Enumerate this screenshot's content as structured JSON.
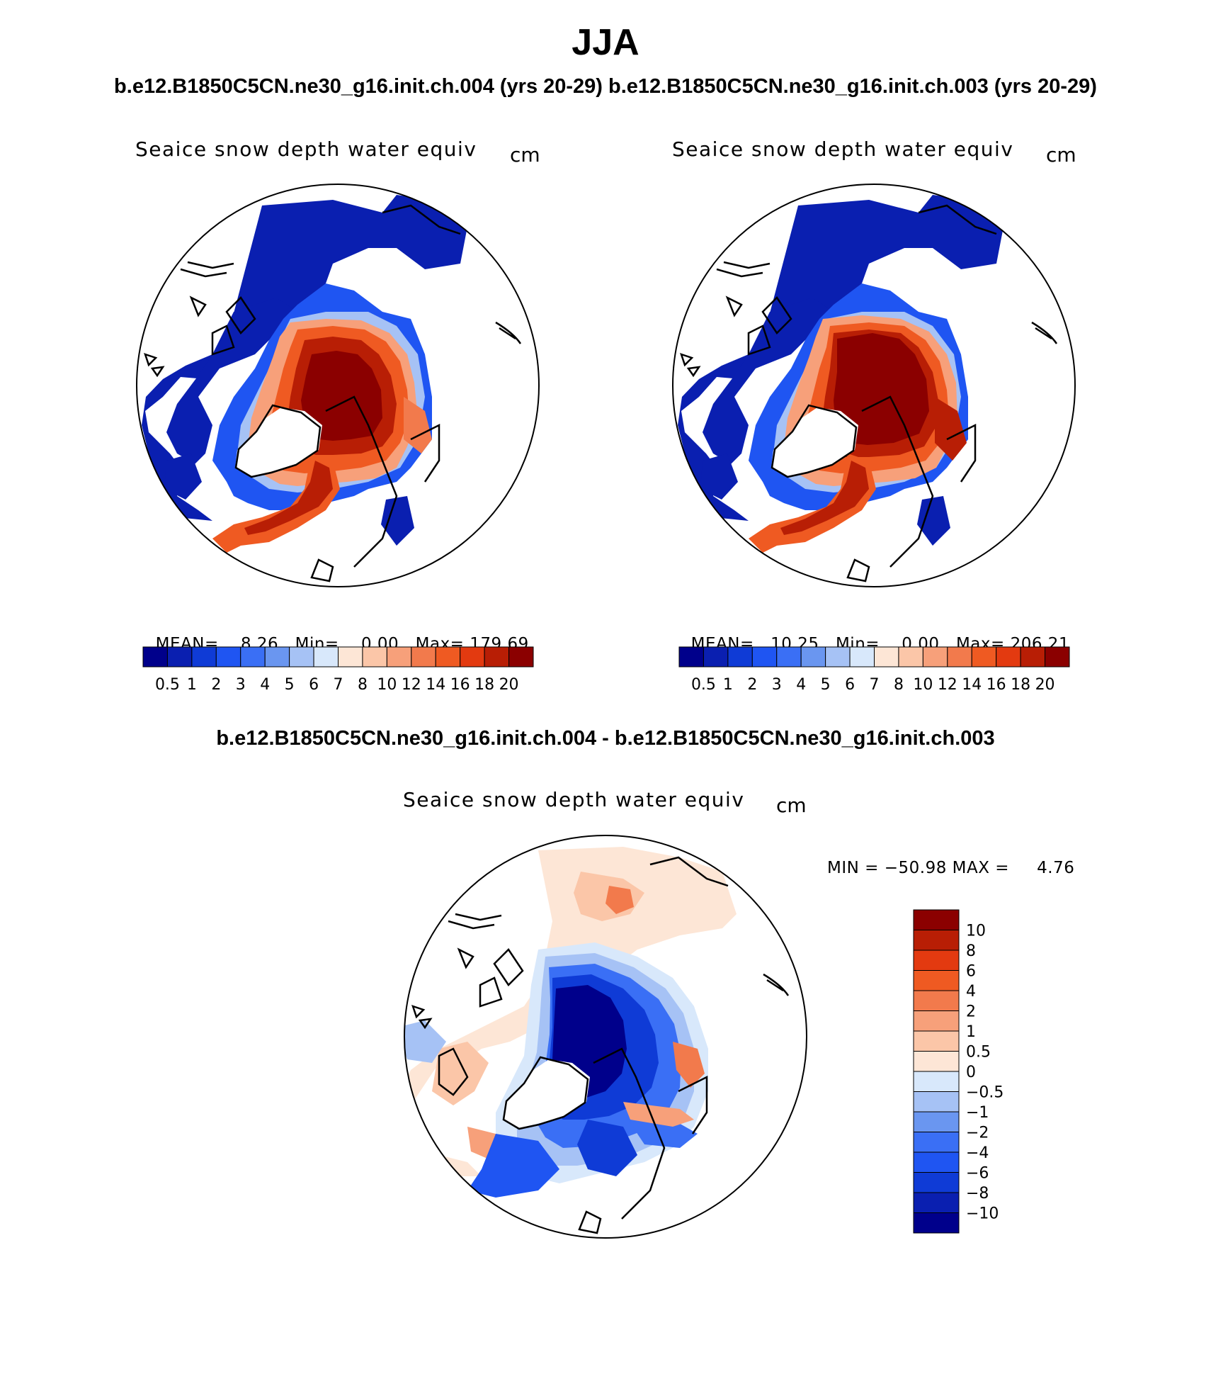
{
  "title": "JJA",
  "case_titles": "b.e12.B1850C5CN.ne30_g16.init.ch.004 (yrs 20-29)  b.e12.B1850C5CN.ne30_g16.init.ch.003 (yrs 20-29)",
  "diff_title": "b.e12.B1850C5CN.ne30_g16.init.ch.004 - b.e12.B1850C5CN.ne30_g16.init.ch.003",
  "chart_data": [
    {
      "type": "heatmap",
      "projection": "north polar stereographic",
      "title": "Seaice snow depth water equiv",
      "units": "cm",
      "stats": {
        "mean_label": "MEAN=",
        "mean": "8.26",
        "min_label": "Min=",
        "min": "0.00",
        "max_label": "Max=",
        "max": "179.69"
      },
      "levels": [
        "0.5",
        "1",
        "2",
        "3",
        "4",
        "5",
        "6",
        "7",
        "8",
        "10",
        "12",
        "14",
        "16",
        "18",
        "20"
      ],
      "colors": [
        "#00008b",
        "#0a1fb0",
        "#0f3bd6",
        "#1f55f2",
        "#3a6ff5",
        "#6a96f0",
        "#a6c2f5",
        "#d8e8fb",
        "#fde6d6",
        "#fbc6a8",
        "#f7a07a",
        "#f27a4c",
        "#ef5a22",
        "#e33a10",
        "#b81e05",
        "#8b0000"
      ],
      "legend_position": "bottom"
    },
    {
      "type": "heatmap",
      "projection": "north polar stereographic",
      "title": "Seaice snow depth water equiv",
      "units": "cm",
      "stats": {
        "mean_label": "MEAN=",
        "mean": "10.25",
        "min_label": "Min=",
        "min": "0.00",
        "max_label": "Max=",
        "max": "206.21"
      },
      "levels": [
        "0.5",
        "1",
        "2",
        "3",
        "4",
        "5",
        "6",
        "7",
        "8",
        "10",
        "12",
        "14",
        "16",
        "18",
        "20"
      ],
      "colors": [
        "#00008b",
        "#0a1fb0",
        "#0f3bd6",
        "#1f55f2",
        "#3a6ff5",
        "#6a96f0",
        "#a6c2f5",
        "#d8e8fb",
        "#fde6d6",
        "#fbc6a8",
        "#f7a07a",
        "#f27a4c",
        "#ef5a22",
        "#e33a10",
        "#b81e05",
        "#8b0000"
      ],
      "legend_position": "bottom"
    },
    {
      "type": "heatmap",
      "projection": "north polar stereographic",
      "title": "Seaice snow depth water equiv",
      "units": "cm",
      "stats_text": "MIN = −50.98 MAX =     4.76",
      "levels": [
        "10",
        "8",
        "6",
        "4",
        "2",
        "1",
        "0.5",
        "0",
        "−0.5",
        "−1",
        "−2",
        "−4",
        "−6",
        "−8",
        "−10"
      ],
      "colors": [
        "#8b0000",
        "#b81e05",
        "#e33a10",
        "#ef5a22",
        "#f27a4c",
        "#f7a07a",
        "#fbc6a8",
        "#fde6d6",
        "#d8e8fb",
        "#a6c2f5",
        "#6a96f0",
        "#3a6ff5",
        "#1f55f2",
        "#0f3bd6",
        "#0a1fb0",
        "#00008b"
      ],
      "legend_position": "right"
    }
  ]
}
